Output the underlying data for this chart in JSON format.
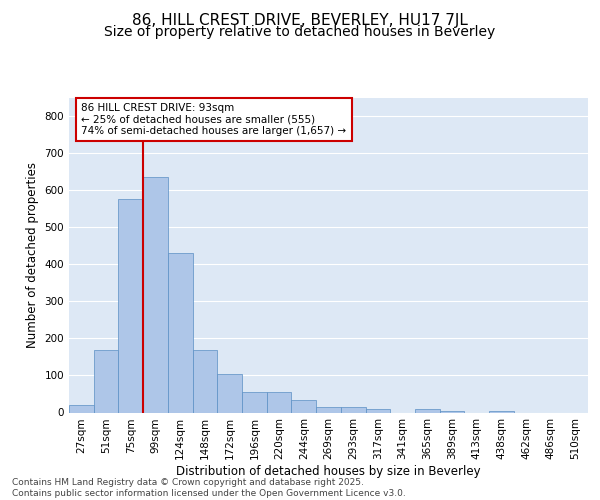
{
  "title1": "86, HILL CREST DRIVE, BEVERLEY, HU17 7JL",
  "title2": "Size of property relative to detached houses in Beverley",
  "xlabel": "Distribution of detached houses by size in Beverley",
  "ylabel": "Number of detached properties",
  "bar_labels": [
    "27sqm",
    "51sqm",
    "75sqm",
    "99sqm",
    "124sqm",
    "148sqm",
    "172sqm",
    "196sqm",
    "220sqm",
    "244sqm",
    "269sqm",
    "293sqm",
    "317sqm",
    "341sqm",
    "365sqm",
    "389sqm",
    "413sqm",
    "438sqm",
    "462sqm",
    "486sqm",
    "510sqm"
  ],
  "bar_values": [
    20,
    170,
    575,
    635,
    430,
    170,
    105,
    55,
    55,
    35,
    15,
    15,
    10,
    0,
    10,
    5,
    0,
    5,
    0,
    0,
    0
  ],
  "bar_color": "#aec6e8",
  "bar_edge_color": "#5a8fc4",
  "bg_color": "#dde8f5",
  "grid_color": "#ffffff",
  "vline_color": "#cc0000",
  "vline_x_index": 2.5,
  "annotation_text": "86 HILL CREST DRIVE: 93sqm\n← 25% of detached houses are smaller (555)\n74% of semi-detached houses are larger (1,657) →",
  "annotation_box_color": "#cc0000",
  "ylim": [
    0,
    850
  ],
  "yticks": [
    0,
    100,
    200,
    300,
    400,
    500,
    600,
    700,
    800
  ],
  "footer": "Contains HM Land Registry data © Crown copyright and database right 2025.\nContains public sector information licensed under the Open Government Licence v3.0.",
  "title_fontsize": 11,
  "subtitle_fontsize": 10,
  "tick_fontsize": 7.5,
  "ylabel_fontsize": 8.5,
  "xlabel_fontsize": 8.5,
  "footer_fontsize": 6.5,
  "ann_fontsize": 7.5
}
